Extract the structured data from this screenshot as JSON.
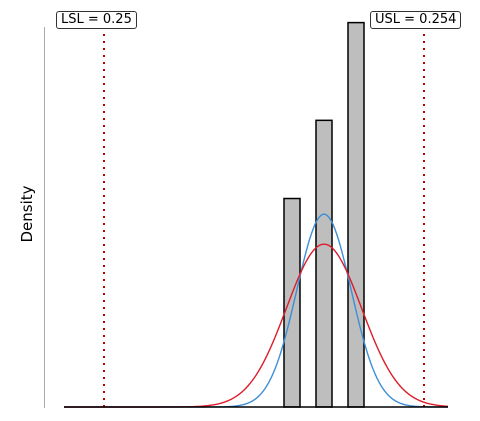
{
  "chart_data": {
    "type": "histogram",
    "ylabel": "Density",
    "lsl": {
      "label": "LSL = 0.25",
      "value": 0.25
    },
    "usl": {
      "label": "USL = 0.254",
      "value": 0.254
    },
    "xlim": [
      0.2495,
      0.2543
    ],
    "bins": [
      {
        "x0": 0.25225,
        "x1": 0.25245,
        "density": 1.6
      },
      {
        "x0": 0.25265,
        "x1": 0.25285,
        "density": 2.2
      },
      {
        "x0": 0.25305,
        "x1": 0.25325,
        "density": 2.95
      }
    ],
    "curves": [
      {
        "color": "#3d8fd6",
        "mean": 0.25275,
        "sd": 0.00034,
        "peak": 1.48
      },
      {
        "color": "#dd1d2a",
        "mean": 0.25275,
        "sd": 0.00047,
        "peak": 1.25
      }
    ],
    "colors": {
      "bar_fill": "#bebebe",
      "bar_stroke": "#000000",
      "spec_line": "#c00000",
      "axis": "#aaaaaa"
    }
  }
}
